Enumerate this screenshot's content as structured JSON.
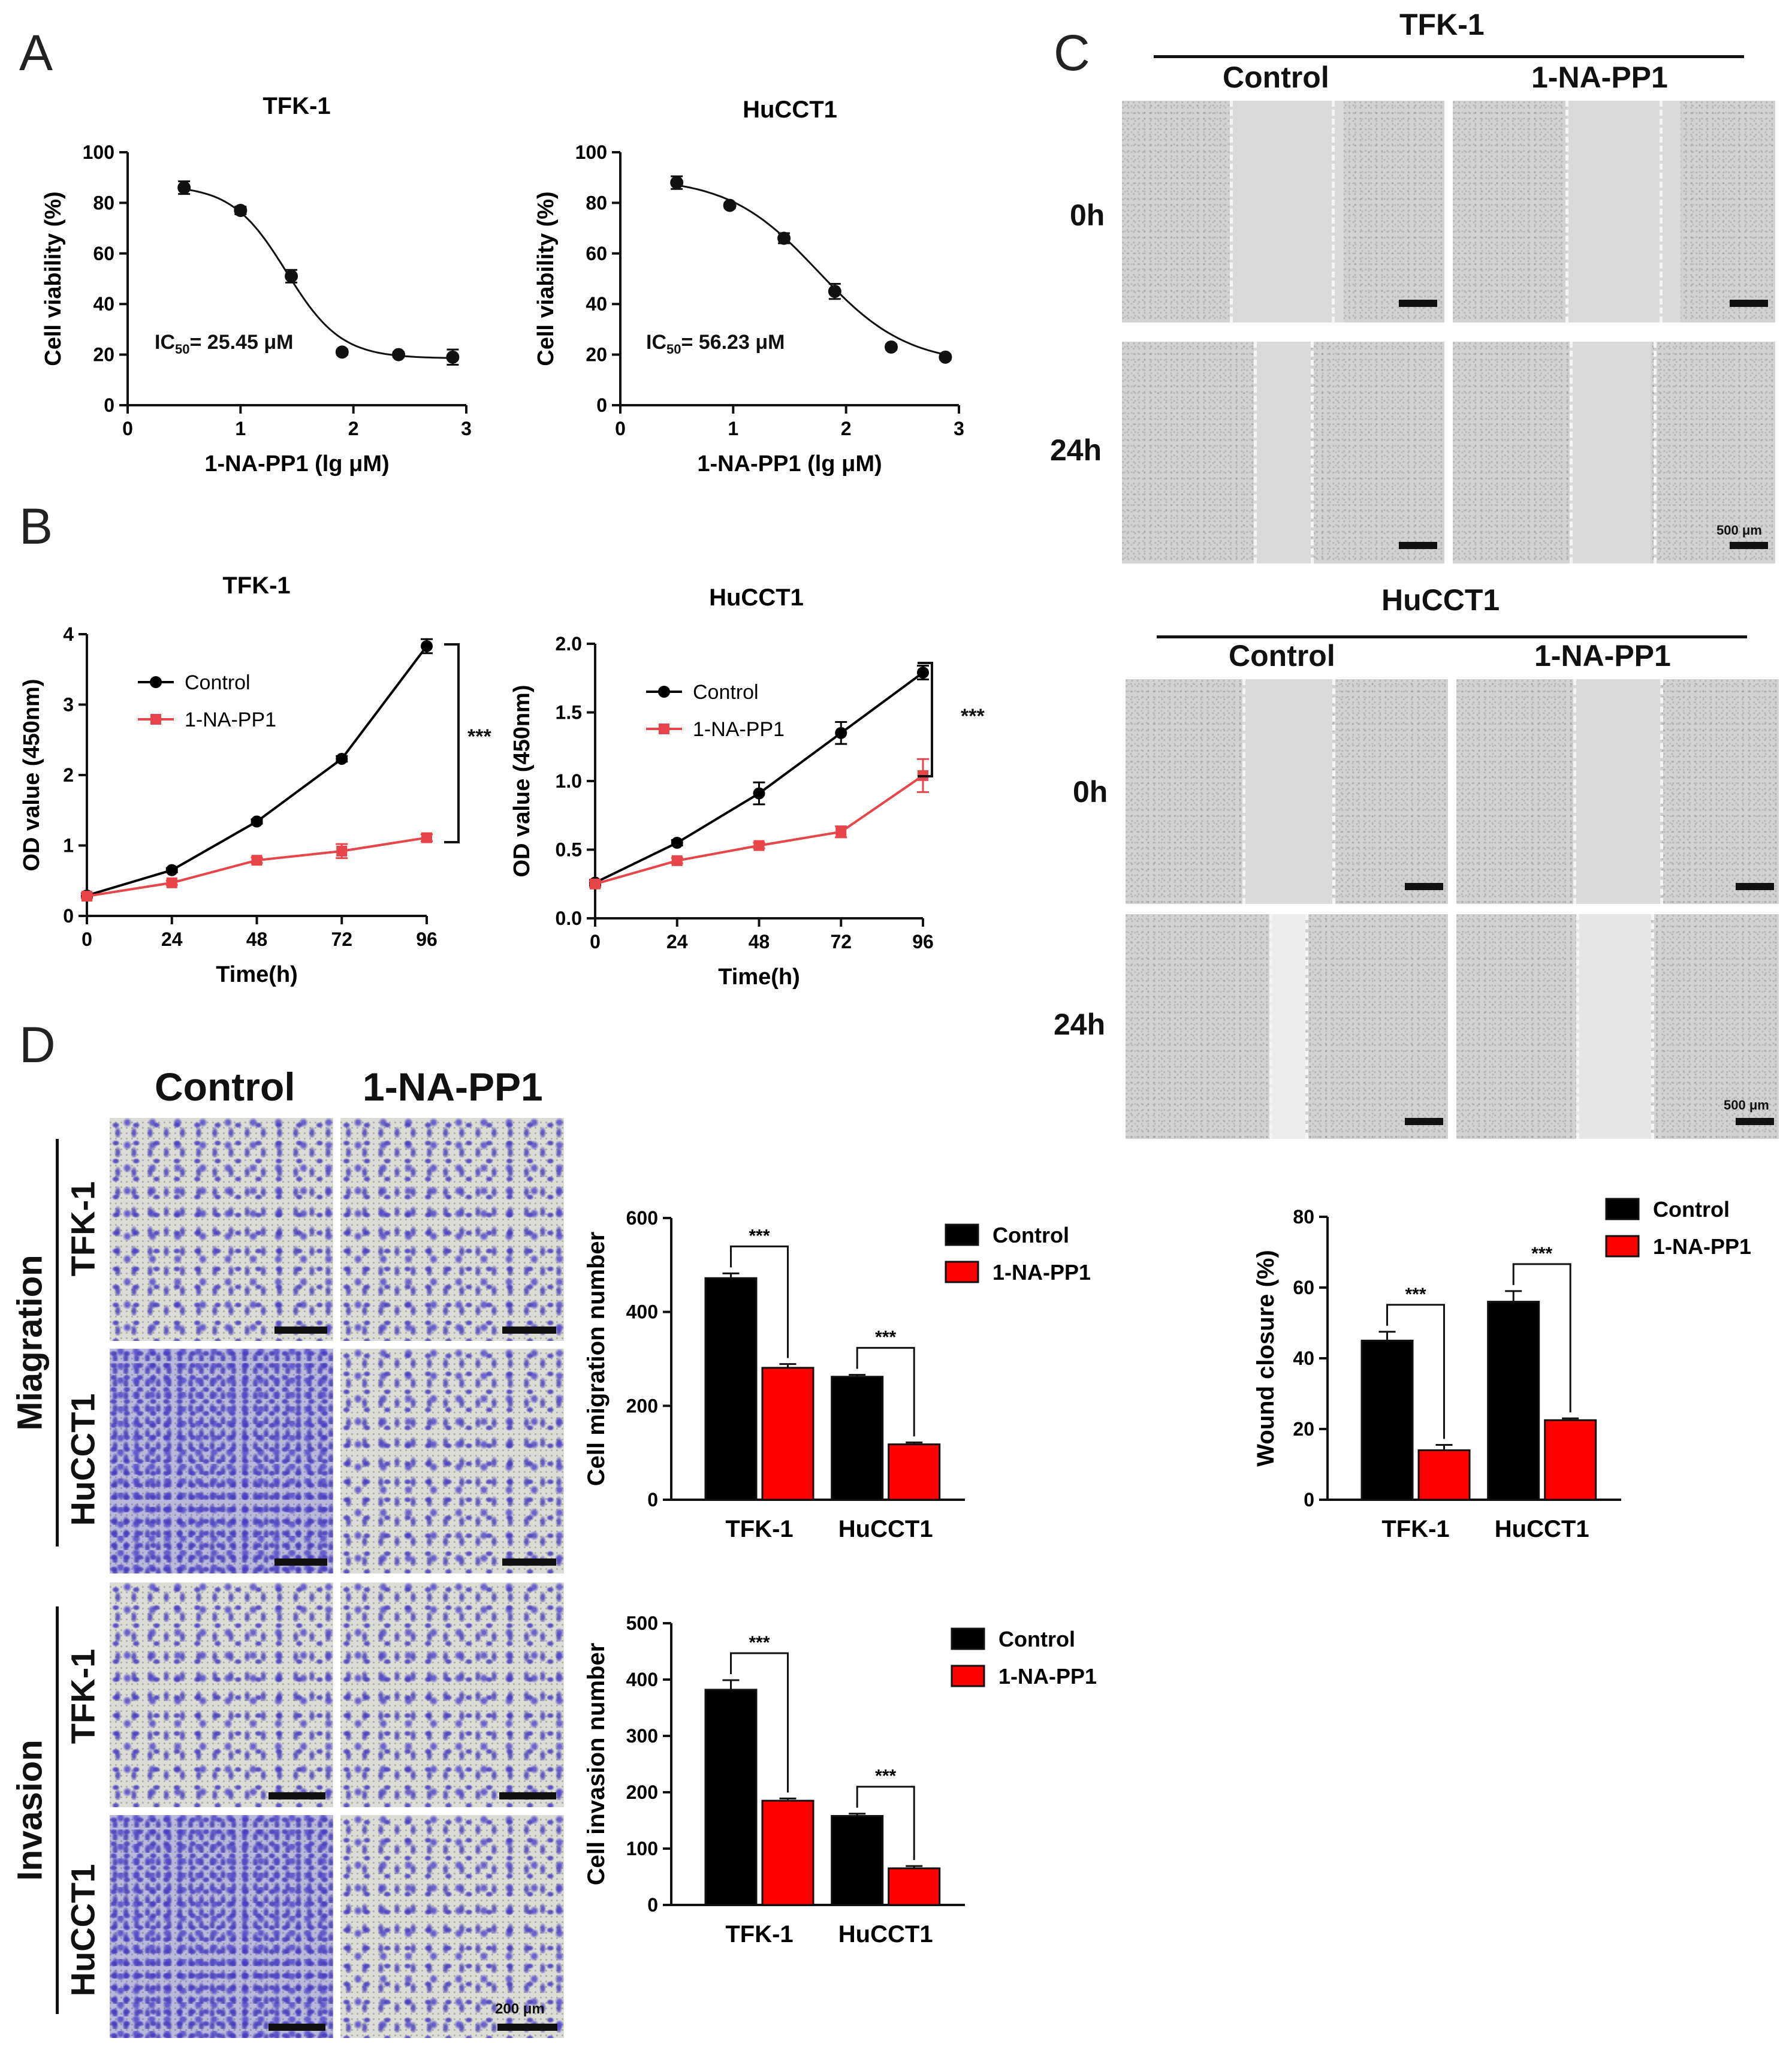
{
  "panel_labels": {
    "a": "A",
    "b": "B",
    "c": "C",
    "d": "D"
  },
  "panel_a": {
    "left": {
      "title": "TFK-1",
      "ic50_label": "IC",
      "ic50_sub": "50",
      "ic50_value": "= 25.45 μM"
    },
    "right": {
      "title": "HuCCT1",
      "ic50_label": "IC",
      "ic50_sub": "50",
      "ic50_value": "= 56.23 μM"
    }
  },
  "panel_b": {
    "left": {
      "title": "TFK-1",
      "sig": "***"
    },
    "right": {
      "title": "HuCCT1",
      "sig": "***"
    }
  },
  "panel_c": {
    "tfk": {
      "title": "TFK-1",
      "col_control": "Control",
      "col_treat": "1-NA-PP1",
      "row_0h": "0h",
      "row_24h": "24h",
      "scale_label": "500 μm"
    },
    "huc": {
      "title": "HuCCT1",
      "col_control": "Control",
      "col_treat": "1-NA-PP1",
      "row_0h": "0h",
      "row_24h": "24h",
      "scale_label": "500 μm"
    }
  },
  "panel_d": {
    "col_control": "Control",
    "col_treat": "1-NA-PP1",
    "group_migration": "Miagration",
    "group_invasion": "Invasion",
    "row_tfk": "TFK-1",
    "row_huc": "HuCCT1",
    "scale_label": "200 μm"
  },
  "colors": {
    "control": "#000000",
    "treatment": "#ff0000",
    "line_treatment": "#e8454a"
  },
  "chart_data": [
    {
      "id": "a_tfk",
      "type": "scatter",
      "title": "TFK-1",
      "xlabel": "1-NA-PP1 (lg μM)",
      "ylabel": "Cell viability (%)",
      "xlim": [
        0,
        3
      ],
      "ylim": [
        0,
        100
      ],
      "xticks": [
        "0",
        "1",
        "2",
        "3"
      ],
      "yticks": [
        "0",
        "20",
        "40",
        "60",
        "80",
        "100"
      ],
      "x": [
        0.5,
        1.0,
        1.45,
        1.9,
        2.4,
        2.88
      ],
      "y": [
        86,
        77,
        51,
        21,
        20,
        19
      ],
      "err": [
        2.5,
        1.5,
        2.5,
        1,
        1,
        3
      ],
      "fit": {
        "top": 87,
        "bottom": 18.5,
        "logic50": 1.406,
        "hill": 1.8
      }
    },
    {
      "id": "a_huc",
      "type": "scatter",
      "title": "HuCCT1",
      "xlabel": "1-NA-PP1 (lg μM)",
      "ylabel": "Cell viability (%)",
      "xlim": [
        0,
        3
      ],
      "ylim": [
        0,
        100
      ],
      "xticks": [
        "0",
        "1",
        "2",
        "3"
      ],
      "yticks": [
        "0",
        "20",
        "40",
        "60",
        "80",
        "100"
      ],
      "x": [
        0.5,
        0.97,
        1.45,
        1.9,
        2.4,
        2.88
      ],
      "y": [
        88,
        79,
        66,
        45,
        23,
        19
      ],
      "err": [
        2.5,
        1,
        2,
        3,
        1,
        1
      ],
      "fit": {
        "top": 90,
        "bottom": 16,
        "logic50": 1.75,
        "hill": 1.1
      }
    },
    {
      "id": "b_tfk",
      "type": "line",
      "title": "TFK-1",
      "xlabel": "Time(h)",
      "ylabel": "OD value (450nm)",
      "xlim": [
        0,
        96
      ],
      "ylim": [
        0,
        4
      ],
      "xticks": [
        "0",
        "24",
        "48",
        "72",
        "96"
      ],
      "yticks": [
        "0",
        "1",
        "2",
        "3",
        "4"
      ],
      "x": [
        0,
        24,
        48,
        72,
        96
      ],
      "series": [
        {
          "name": "Control",
          "values": [
            0.29,
            0.65,
            1.34,
            2.23,
            3.83
          ],
          "err": [
            0.03,
            0.03,
            0.03,
            0.04,
            0.1
          ]
        },
        {
          "name": "1-NA-PP1",
          "values": [
            0.28,
            0.47,
            0.79,
            0.92,
            1.11
          ],
          "err": [
            0.03,
            0.03,
            0.04,
            0.1,
            0.05
          ]
        }
      ],
      "legend": "top-left"
    },
    {
      "id": "b_huc",
      "type": "line",
      "title": "HuCCT1",
      "xlabel": "Time(h)",
      "ylabel": "OD value (450nm)",
      "xlim": [
        0,
        96
      ],
      "ylim": [
        0,
        2
      ],
      "xticks": [
        "0",
        "24",
        "48",
        "72",
        "96"
      ],
      "yticks": [
        "0.0",
        "0.5",
        "1.0",
        "1.5",
        "2.0"
      ],
      "x": [
        0,
        24,
        48,
        72,
        96
      ],
      "series": [
        {
          "name": "Control",
          "values": [
            0.26,
            0.55,
            0.91,
            1.35,
            1.79
          ],
          "err": [
            0.02,
            0.02,
            0.08,
            0.08,
            0.05
          ]
        },
        {
          "name": "1-NA-PP1",
          "values": [
            0.25,
            0.42,
            0.53,
            0.63,
            1.04
          ],
          "err": [
            0.02,
            0.02,
            0.02,
            0.04,
            0.12
          ]
        }
      ],
      "legend": "top-left"
    },
    {
      "id": "c_wound",
      "type": "bar",
      "categories": [
        "TFK-1",
        "HuCCT1"
      ],
      "ylabel": "Wound closure (%)",
      "ylim": [
        0,
        80
      ],
      "yticks": [
        "0",
        "20",
        "40",
        "60",
        "80"
      ],
      "series": [
        {
          "name": "Control",
          "values": [
            45,
            56
          ],
          "err": [
            2.5,
            3
          ]
        },
        {
          "name": "1-NA-PP1",
          "values": [
            14,
            22.5
          ],
          "err": [
            1.5,
            0.5
          ]
        }
      ],
      "sig": [
        "***",
        "***"
      ],
      "legend": "top-right"
    },
    {
      "id": "d_migration",
      "type": "bar",
      "categories": [
        "TFK-1",
        "HuCCT1"
      ],
      "ylabel": "Cell migration number",
      "ylim": [
        0,
        600
      ],
      "yticks": [
        "0",
        "200",
        "400",
        "600"
      ],
      "series": [
        {
          "name": "Control",
          "values": [
            472,
            262
          ],
          "err": [
            10,
            4
          ]
        },
        {
          "name": "1-NA-PP1",
          "values": [
            281,
            118
          ],
          "err": [
            8,
            4
          ]
        }
      ],
      "sig": [
        "***",
        "***"
      ],
      "legend": "top-right"
    },
    {
      "id": "d_invasion",
      "type": "bar",
      "categories": [
        "TFK-1",
        "HuCCT1"
      ],
      "ylabel": "Cell invasion number",
      "ylim": [
        0,
        500
      ],
      "yticks": [
        "0",
        "100",
        "200",
        "300",
        "400",
        "500"
      ],
      "series": [
        {
          "name": "Control",
          "values": [
            382,
            158
          ],
          "err": [
            17,
            4
          ]
        },
        {
          "name": "1-NA-PP1",
          "values": [
            185,
            65
          ],
          "err": [
            4,
            4
          ]
        }
      ],
      "sig": [
        "***",
        "***"
      ],
      "legend": "top-right"
    }
  ]
}
